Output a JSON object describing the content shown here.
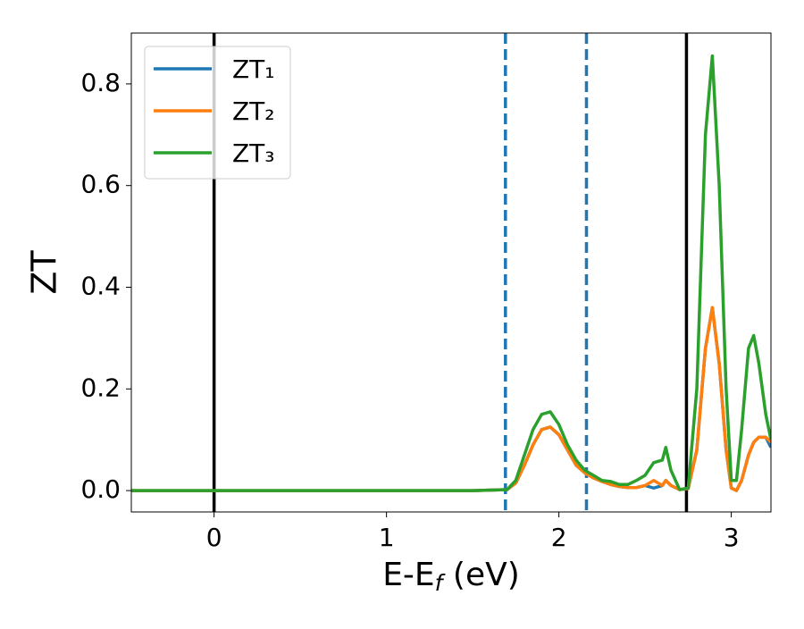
{
  "chart_data": {
    "type": "line",
    "xlabel": [
      "E-E",
      "f",
      " (eV)"
    ],
    "ylabel": "ZT",
    "x": [
      -0.48,
      0,
      0.5,
      1,
      1.5,
      1.7,
      1.75,
      1.8,
      1.85,
      1.9,
      1.95,
      2.0,
      2.05,
      2.1,
      2.15,
      2.2,
      2.25,
      2.3,
      2.35,
      2.4,
      2.45,
      2.5,
      2.55,
      2.6,
      2.62,
      2.65,
      2.7,
      2.75,
      2.8,
      2.85,
      2.89,
      2.93,
      2.97,
      3.0,
      3.03,
      3.06,
      3.1,
      3.13,
      3.16,
      3.2,
      3.23
    ],
    "series": [
      {
        "name": "ZT₁",
        "color": "#1f77b4",
        "values": [
          0,
          0,
          0,
          0,
          0,
          0.002,
          0.015,
          0.05,
          0.09,
          0.12,
          0.125,
          0.11,
          0.08,
          0.05,
          0.035,
          0.025,
          0.018,
          0.012,
          0.008,
          0.006,
          0.006,
          0.01,
          0.005,
          0.01,
          0.02,
          0.01,
          0.002,
          0.004,
          0.08,
          0.28,
          0.36,
          0.25,
          0.08,
          0.005,
          0.0,
          0.02,
          0.07,
          0.095,
          0.105,
          0.105,
          0.085
        ]
      },
      {
        "name": "ZT₂",
        "color": "#ff7f0e",
        "values": [
          0,
          0,
          0,
          0,
          0,
          0.002,
          0.015,
          0.05,
          0.09,
          0.12,
          0.125,
          0.11,
          0.08,
          0.05,
          0.035,
          0.025,
          0.018,
          0.012,
          0.008,
          0.006,
          0.006,
          0.01,
          0.02,
          0.01,
          0.02,
          0.01,
          0.002,
          0.004,
          0.08,
          0.28,
          0.36,
          0.25,
          0.08,
          0.005,
          0.0,
          0.02,
          0.07,
          0.095,
          0.105,
          0.105,
          0.095
        ]
      },
      {
        "name": "ZT₃",
        "color": "#2ca02c",
        "values": [
          0,
          0,
          0,
          0,
          0,
          0.002,
          0.02,
          0.07,
          0.12,
          0.15,
          0.155,
          0.13,
          0.09,
          0.06,
          0.04,
          0.03,
          0.02,
          0.018,
          0.012,
          0.012,
          0.02,
          0.03,
          0.055,
          0.06,
          0.085,
          0.04,
          0.002,
          0.005,
          0.2,
          0.7,
          0.855,
          0.6,
          0.2,
          0.02,
          0.02,
          0.12,
          0.28,
          0.305,
          0.25,
          0.15,
          0.1
        ]
      }
    ],
    "vlines": [
      {
        "x": 0,
        "style": "solid",
        "color": "#000000"
      },
      {
        "x": 1.69,
        "style": "dashed",
        "color": "#1f77b4"
      },
      {
        "x": 2.16,
        "style": "dashed",
        "color": "#1f77b4"
      },
      {
        "x": 2.74,
        "style": "solid",
        "color": "#000000"
      }
    ],
    "xlim": [
      -0.48,
      3.23
    ],
    "xticks": [
      0,
      1,
      2,
      3
    ],
    "ylim": [
      -0.042,
      0.9
    ],
    "yticks": [
      {
        "value": 0,
        "label": "0.0"
      },
      0.2,
      0.4,
      0.6,
      0.8
    ],
    "legend": "upper-left"
  }
}
